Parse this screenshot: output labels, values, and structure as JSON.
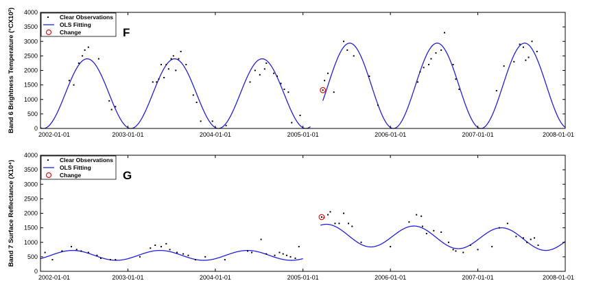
{
  "colors": {
    "fit": "#1f1fdf",
    "change": "#e01010",
    "obs": "#000000"
  },
  "chart_data": [
    {
      "type": "scatter",
      "panel_label": "F",
      "ylabel": "Band 6 Brightness Temperature (°CX10²)",
      "ylim": [
        0,
        4000
      ],
      "yticks": [
        "0",
        "500",
        "1000",
        "1500",
        "2000",
        "2500",
        "3000",
        "3500",
        "4000"
      ],
      "x_range": [
        "2002-01-01",
        "2008-01-01"
      ],
      "xticks": [
        "2002-01-01",
        "2003-01-01",
        "2004-01-01",
        "2005-01-01",
        "2006-01-01",
        "2007-01-01",
        "2008-01-01"
      ],
      "legend": [
        "Clear Observations",
        "OLS Fitting",
        "Change"
      ],
      "legend_position": "top-left",
      "fit_segments": [
        {
          "start": "2002-01-01",
          "end": "2005-02-01",
          "mean": 1200,
          "amplitude": 1200,
          "peak": "2002-07-15",
          "trend": 0
        },
        {
          "start": "2005-03-25",
          "end": "2008-01-01",
          "mean": 1470,
          "amplitude": 1470,
          "peak": "2005-07-15",
          "trend": 0
        }
      ],
      "change": {
        "x": "2005-03-25",
        "y": 1320
      },
      "series": [
        {
          "type": "scatter",
          "x": [
            "2002-05-01",
            "2002-05-20",
            "2002-06-10",
            "2002-06-25",
            "2002-07-05",
            "2002-07-20",
            "2002-09-01",
            "2002-10-15",
            "2002-10-25",
            "2002-11-10",
            "2003-04-15",
            "2003-05-01",
            "2003-05-10",
            "2003-05-20",
            "2003-06-01",
            "2003-06-10",
            "2003-06-20",
            "2003-07-01",
            "2003-07-10",
            "2003-07-20",
            "2003-08-01",
            "2003-08-10",
            "2003-09-01",
            "2003-10-01",
            "2003-10-15",
            "2003-11-01",
            "2003-12-20",
            "2004-02-15",
            "2004-05-25",
            "2004-06-15",
            "2004-07-05",
            "2004-07-25",
            "2004-08-01",
            "2004-09-01",
            "2004-09-15",
            "2004-10-01",
            "2004-10-15",
            "2004-11-01",
            "2004-11-15",
            "2004-12-20",
            "2005-04-01",
            "2005-04-15",
            "2005-05-10",
            "2005-06-20",
            "2005-07-05",
            "2005-08-01",
            "2005-10-05",
            "2005-11-10",
            "2006-04-25",
            "2006-05-05",
            "2006-05-20",
            "2006-06-10",
            "2006-06-20",
            "2006-07-10",
            "2006-08-01",
            "2006-08-15",
            "2006-09-20",
            "2006-10-01",
            "2006-10-15",
            "2007-03-20",
            "2007-04-20",
            "2007-06-01",
            "2007-06-25",
            "2007-07-10",
            "2007-07-20",
            "2007-08-01",
            "2007-08-15",
            "2007-09-05"
          ],
          "y": [
            1650,
            1500,
            2250,
            2500,
            2700,
            2800,
            2400,
            950,
            650,
            750,
            1600,
            1600,
            1700,
            2200,
            1750,
            2200,
            2050,
            2400,
            2500,
            2000,
            2400,
            2650,
            2200,
            1150,
            900,
            250,
            250,
            100,
            1600,
            2000,
            1850,
            2050,
            2250,
            1900,
            1800,
            1550,
            1350,
            1250,
            200,
            450,
            1650,
            1900,
            1250,
            3000,
            2700,
            2500,
            1800,
            800,
            1600,
            1950,
            2100,
            2200,
            2400,
            2600,
            2700,
            3300,
            2200,
            1700,
            1350,
            1300,
            2150,
            2300,
            2900,
            2800,
            2350,
            2450,
            3000,
            2650
          ]
        }
      ]
    },
    {
      "type": "scatter",
      "panel_label": "G",
      "ylabel": "Band 7 Surface Reflectance (X10⁴)",
      "ylim": [
        0,
        4000
      ],
      "yticks": [
        "0",
        "500",
        "1000",
        "1500",
        "2000",
        "2500",
        "3000",
        "3500",
        "4000"
      ],
      "x_range": [
        "2002-01-01",
        "2008-01-01"
      ],
      "xticks": [
        "2002-01-01",
        "2003-01-01",
        "2004-01-01",
        "2005-01-01",
        "2006-01-01",
        "2007-01-01",
        "2008-01-01"
      ],
      "legend": [
        "Clear Observations",
        "OLS Fitting",
        "Change"
      ],
      "legend_position": "top-left",
      "fit_segments": [
        {
          "start": "2002-01-01",
          "end": "2005-01-01",
          "mean": 550,
          "amplitude": 170,
          "peak": "2002-05-15",
          "trend": 0
        },
        {
          "start": "2005-03-15",
          "end": "2008-01-01",
          "mean": 1250,
          "amplitude": 375,
          "peak": "2005-04-10",
          "trend": -60
        }
      ],
      "change": {
        "x": "2005-03-20",
        "y": 1870
      },
      "series": [
        {
          "type": "scatter",
          "x": [
            "2002-01-20",
            "2002-02-20",
            "2002-04-01",
            "2002-05-10",
            "2002-06-01",
            "2002-06-20",
            "2002-07-20",
            "2002-08-25",
            "2002-09-10",
            "2002-10-20",
            "2002-11-10",
            "2003-02-20",
            "2003-04-05",
            "2003-04-25",
            "2003-05-20",
            "2003-06-10",
            "2003-06-25",
            "2003-07-25",
            "2003-08-20",
            "2003-09-10",
            "2003-10-10",
            "2003-11-20",
            "2004-02-10",
            "2004-05-15",
            "2004-06-01",
            "2004-07-10",
            "2004-08-01",
            "2004-09-05",
            "2004-09-25",
            "2004-10-10",
            "2004-10-25",
            "2004-11-10",
            "2004-11-30",
            "2004-12-15",
            "2005-03-30",
            "2005-04-15",
            "2005-04-25",
            "2005-05-15",
            "2005-06-01",
            "2005-06-20",
            "2005-07-10",
            "2005-07-25",
            "2005-09-01",
            "2006-01-01",
            "2006-03-20",
            "2006-04-20",
            "2006-05-10",
            "2006-05-15",
            "2006-06-01",
            "2006-07-01",
            "2006-08-01",
            "2006-09-01",
            "2006-09-20",
            "2006-10-01",
            "2006-11-01",
            "2006-12-01",
            "2007-01-01",
            "2007-03-01",
            "2007-04-01",
            "2007-05-05",
            "2007-06-10",
            "2007-07-10",
            "2007-07-25",
            "2007-08-10",
            "2007-08-25",
            "2007-09-10"
          ],
          "y": [
            650,
            400,
            700,
            850,
            750,
            700,
            650,
            550,
            450,
            400,
            400,
            500,
            800,
            900,
            850,
            950,
            750,
            650,
            600,
            550,
            400,
            500,
            400,
            700,
            650,
            1100,
            600,
            550,
            650,
            600,
            550,
            500,
            450,
            850,
            1850,
            1950,
            2050,
            1650,
            1650,
            2000,
            1650,
            1550,
            1000,
            850,
            1700,
            1950,
            1900,
            1550,
            1300,
            1400,
            1350,
            1000,
            750,
            700,
            650,
            900,
            750,
            850,
            1500,
            1650,
            1200,
            1150,
            1000,
            1100,
            1150,
            900
          ]
        }
      ]
    }
  ]
}
